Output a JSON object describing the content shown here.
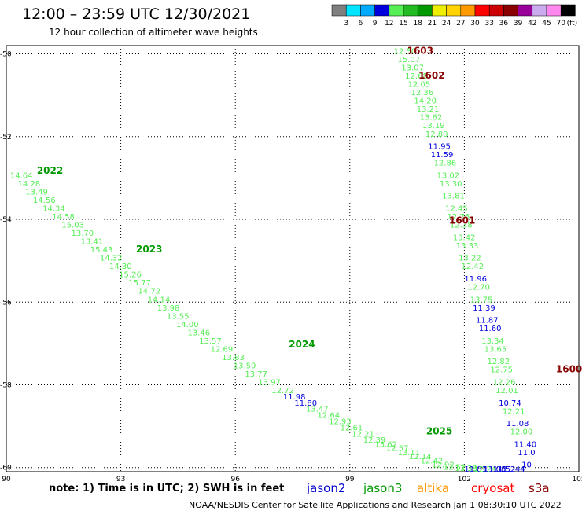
{
  "header": {
    "title": "12:00 – 23:59 UTC 12/30/2021",
    "subtitle": "12 hour collection of altimeter wave heights"
  },
  "colorbar": {
    "labels": [
      "3",
      "6",
      "9",
      "12",
      "15",
      "18",
      "21",
      "24",
      "27",
      "30",
      "33",
      "36",
      "39",
      "42",
      "45",
      "70"
    ],
    "unit": "(ft)",
    "colors": [
      "#7f7f7f",
      "#00e5ff",
      "#00aaff",
      "#0000dd",
      "#55ee55",
      "#22bb22",
      "#009900",
      "#eeee00",
      "#ffd200",
      "#ff9900",
      "#ff0000",
      "#cc0000",
      "#880000",
      "#990099",
      "#ccaaee",
      "#ff88ee",
      "#000000"
    ]
  },
  "footer": {
    "note": "note:  1) Time is in UTC;  2) SWH is in feet",
    "credit": "NOAA/NESDIS Center for Satellite Applications and Research    Jan  1 08:30:10 UTC 2022",
    "legend": [
      {
        "name": "jason2",
        "color": "#0000cc"
      },
      {
        "name": "jason3",
        "color": "#009900"
      },
      {
        "name": "altika",
        "color": "#ff9900"
      },
      {
        "name": "cryosat",
        "color": "#ff0000"
      },
      {
        "name": "s3a",
        "color": "#880000"
      }
    ]
  },
  "chart_data": {
    "type": "scatter",
    "xlim": [
      90,
      105
    ],
    "ylim": [
      -60.1,
      -49.8
    ],
    "xticks": [
      90,
      93,
      96,
      99,
      102,
      105
    ],
    "yticks": [
      -50,
      -52,
      -54,
      -56,
      -58,
      -60
    ],
    "grid": true,
    "tracks": [
      {
        "name": "1603",
        "satellite": "s3a",
        "label_at": [
          100.5,
          -50.0
        ],
        "color": "#880000"
      },
      {
        "name": "1602",
        "satellite": "s3a",
        "label_at": [
          100.8,
          -50.6
        ],
        "color": "#880000"
      },
      {
        "name": "1601",
        "satellite": "s3a",
        "label_at": [
          101.6,
          -54.1
        ],
        "color": "#880000"
      },
      {
        "name": "1600",
        "satellite": "s3a",
        "label_at": [
          104.4,
          -57.7
        ],
        "color": "#880000"
      },
      {
        "name": "2022",
        "satellite": "jason3",
        "label_at": [
          90.8,
          -52.9
        ],
        "color": "#009900"
      },
      {
        "name": "2023",
        "satellite": "jason3",
        "label_at": [
          93.4,
          -54.8
        ],
        "color": "#009900"
      },
      {
        "name": "2024",
        "satellite": "jason3",
        "label_at": [
          97.4,
          -57.1
        ],
        "color": "#009900"
      },
      {
        "name": "2025",
        "satellite": "jason3",
        "label_at": [
          101.0,
          -59.2
        ],
        "color": "#009900"
      }
    ],
    "points": [
      {
        "x": 100.15,
        "y": -50.0,
        "v": "12.50"
      },
      {
        "x": 100.25,
        "y": -50.2,
        "v": "15.07"
      },
      {
        "x": 100.35,
        "y": -50.4,
        "v": "13.07"
      },
      {
        "x": 100.45,
        "y": -50.6,
        "v": "12.68"
      },
      {
        "x": 100.52,
        "y": -50.8,
        "v": "12.05"
      },
      {
        "x": 100.6,
        "y": -51.0,
        "v": "12.36"
      },
      {
        "x": 100.68,
        "y": -51.2,
        "v": "14.20"
      },
      {
        "x": 100.75,
        "y": -51.4,
        "v": "13.21"
      },
      {
        "x": 100.83,
        "y": -51.6,
        "v": "13.62"
      },
      {
        "x": 100.9,
        "y": -51.8,
        "v": "13.19"
      },
      {
        "x": 100.98,
        "y": -52.0,
        "v": "12.80"
      },
      {
        "x": 101.05,
        "y": -52.3,
        "v": "11.95"
      },
      {
        "x": 101.12,
        "y": -52.5,
        "v": "11.59"
      },
      {
        "x": 101.2,
        "y": -52.7,
        "v": "12.86"
      },
      {
        "x": 101.28,
        "y": -53.0,
        "v": "13.02"
      },
      {
        "x": 101.35,
        "y": -53.2,
        "v": "13.30"
      },
      {
        "x": 101.42,
        "y": -53.5,
        "v": "13.81"
      },
      {
        "x": 101.5,
        "y": -53.8,
        "v": "12.45"
      },
      {
        "x": 101.55,
        "y": -54.0,
        "v": "12.76"
      },
      {
        "x": 101.62,
        "y": -54.2,
        "v": "12.38"
      },
      {
        "x": 101.7,
        "y": -54.5,
        "v": "13.42"
      },
      {
        "x": 101.78,
        "y": -54.7,
        "v": "13.33"
      },
      {
        "x": 101.85,
        "y": -55.0,
        "v": "13.22"
      },
      {
        "x": 101.92,
        "y": -55.2,
        "v": "12.42"
      },
      {
        "x": 102.0,
        "y": -55.5,
        "v": "11.96"
      },
      {
        "x": 102.08,
        "y": -55.7,
        "v": "12.70"
      },
      {
        "x": 102.15,
        "y": -56.0,
        "v": "13.75"
      },
      {
        "x": 102.22,
        "y": -56.2,
        "v": "11.39"
      },
      {
        "x": 102.3,
        "y": -56.5,
        "v": "11.87"
      },
      {
        "x": 102.38,
        "y": -56.7,
        "v": "11.60"
      },
      {
        "x": 102.45,
        "y": -57.0,
        "v": "13.34"
      },
      {
        "x": 102.52,
        "y": -57.2,
        "v": "13.65"
      },
      {
        "x": 102.6,
        "y": -57.5,
        "v": "12.82"
      },
      {
        "x": 102.68,
        "y": -57.7,
        "v": "12.75"
      },
      {
        "x": 102.75,
        "y": -58.0,
        "v": "12.26"
      },
      {
        "x": 102.82,
        "y": -58.2,
        "v": "12.01"
      },
      {
        "x": 102.9,
        "y": -58.5,
        "v": "10.74"
      },
      {
        "x": 103.0,
        "y": -58.7,
        "v": "12.21"
      },
      {
        "x": 103.1,
        "y": -59.0,
        "v": "11.08"
      },
      {
        "x": 103.2,
        "y": -59.2,
        "v": "12.00"
      },
      {
        "x": 103.3,
        "y": -59.5,
        "v": "11.40"
      },
      {
        "x": 103.4,
        "y": -59.7,
        "v": "11.0"
      },
      {
        "x": 103.5,
        "y": -60.0,
        "v": "10"
      },
      {
        "x": 90.1,
        "y": -53.0,
        "v": "14.64"
      },
      {
        "x": 90.3,
        "y": -53.2,
        "v": "14.28"
      },
      {
        "x": 90.5,
        "y": -53.4,
        "v": "13.49"
      },
      {
        "x": 90.7,
        "y": -53.6,
        "v": "14.56"
      },
      {
        "x": 90.95,
        "y": -53.8,
        "v": "14.34"
      },
      {
        "x": 91.2,
        "y": -54.0,
        "v": "14.58"
      },
      {
        "x": 91.45,
        "y": -54.2,
        "v": "15.03"
      },
      {
        "x": 91.7,
        "y": -54.4,
        "v": "13.70"
      },
      {
        "x": 91.95,
        "y": -54.6,
        "v": "13.41"
      },
      {
        "x": 92.2,
        "y": -54.8,
        "v": "15.43"
      },
      {
        "x": 92.45,
        "y": -55.0,
        "v": "14.32"
      },
      {
        "x": 92.7,
        "y": -55.2,
        "v": "14.30"
      },
      {
        "x": 92.95,
        "y": -55.4,
        "v": "15.26"
      },
      {
        "x": 93.2,
        "y": -55.6,
        "v": "15.77"
      },
      {
        "x": 93.45,
        "y": -55.8,
        "v": "14.72"
      },
      {
        "x": 93.7,
        "y": -56.0,
        "v": "14.14"
      },
      {
        "x": 93.95,
        "y": -56.2,
        "v": "13.98"
      },
      {
        "x": 94.2,
        "y": -56.4,
        "v": "13.55"
      },
      {
        "x": 94.45,
        "y": -56.6,
        "v": "14.00"
      },
      {
        "x": 94.75,
        "y": -56.8,
        "v": "13.46"
      },
      {
        "x": 95.05,
        "y": -57.0,
        "v": "13.57"
      },
      {
        "x": 95.35,
        "y": -57.2,
        "v": "12.69"
      },
      {
        "x": 95.65,
        "y": -57.4,
        "v": "13.83"
      },
      {
        "x": 95.95,
        "y": -57.6,
        "v": "13.59"
      },
      {
        "x": 96.25,
        "y": -57.8,
        "v": "13.77"
      },
      {
        "x": 96.6,
        "y": -58.0,
        "v": "13.97"
      },
      {
        "x": 96.95,
        "y": -58.2,
        "v": "12.72"
      },
      {
        "x": 97.25,
        "y": -58.35,
        "v": "11.98"
      },
      {
        "x": 97.55,
        "y": -58.5,
        "v": "11.80"
      },
      {
        "x": 97.85,
        "y": -58.65,
        "v": "13.47"
      },
      {
        "x": 98.15,
        "y": -58.8,
        "v": "12.64"
      },
      {
        "x": 98.45,
        "y": -58.95,
        "v": "12.93"
      },
      {
        "x": 98.75,
        "y": -59.1,
        "v": "12.61"
      },
      {
        "x": 99.05,
        "y": -59.25,
        "v": "12.21"
      },
      {
        "x": 99.35,
        "y": -59.4,
        "v": "12.39"
      },
      {
        "x": 99.65,
        "y": -59.5,
        "v": "13.62"
      },
      {
        "x": 99.95,
        "y": -59.6,
        "v": "12.57"
      },
      {
        "x": 100.25,
        "y": -59.7,
        "v": "13.11"
      },
      {
        "x": 100.55,
        "y": -59.8,
        "v": "12.14"
      },
      {
        "x": 100.85,
        "y": -59.9,
        "v": "12.42"
      },
      {
        "x": 101.15,
        "y": -60.0,
        "v": "12.92"
      },
      {
        "x": 101.45,
        "y": -60.05,
        "v": "12.52"
      },
      {
        "x": 101.75,
        "y": -60.08,
        "v": "13.38"
      },
      {
        "x": 102.0,
        "y": -60.1,
        "v": "11.89"
      },
      {
        "x": 102.25,
        "y": -60.1,
        "v": "12.24"
      },
      {
        "x": 102.5,
        "y": -60.1,
        "v": "11.08"
      },
      {
        "x": 102.75,
        "y": -60.1,
        "v": "11.52"
      },
      {
        "x": 103.0,
        "y": -60.1,
        "v": "11.44"
      }
    ]
  }
}
